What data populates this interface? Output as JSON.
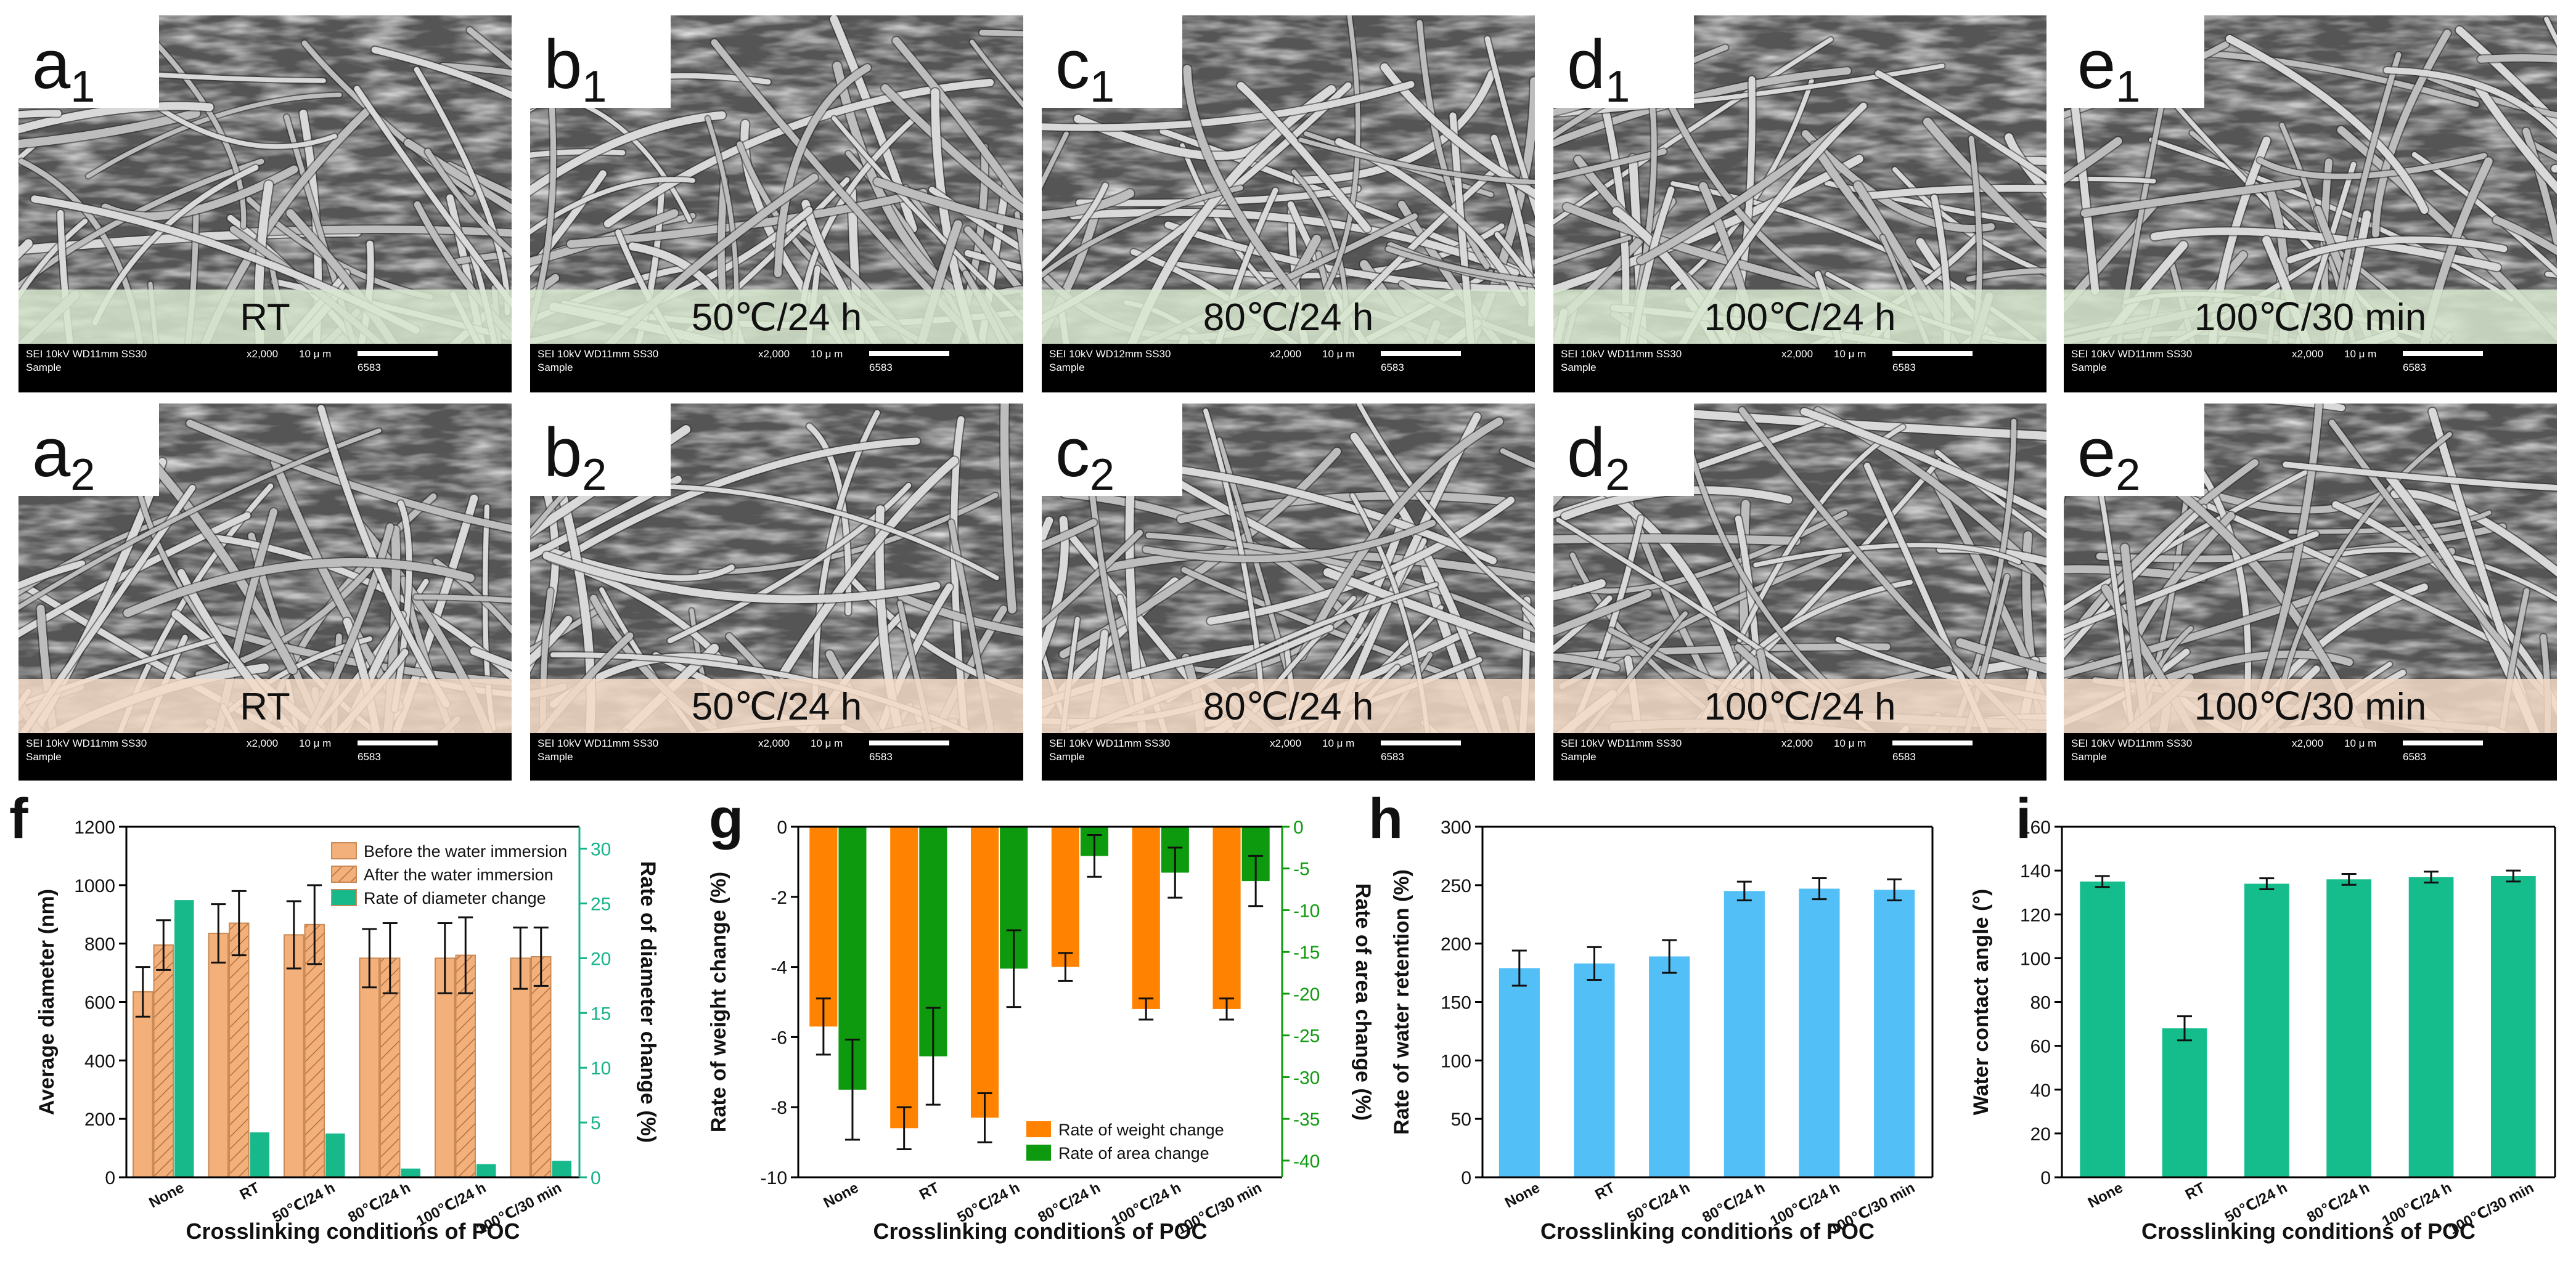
{
  "sem": {
    "rows": [
      {
        "row": 1,
        "band_color": "#d7e8cf",
        "panels": [
          {
            "letter": "a",
            "sub": "1",
            "condition": "RT",
            "info1": "SEI   10kV   WD11mm  SS30",
            "mag": "x2,000",
            "scale": "10 μ m",
            "sample": "Sample",
            "id": "6583"
          },
          {
            "letter": "b",
            "sub": "1",
            "condition": "50℃/24 h",
            "info1": "SEI   10kV   WD11mm  SS30",
            "mag": "x2,000",
            "scale": "10 μ m",
            "sample": "Sample",
            "id": "6583"
          },
          {
            "letter": "c",
            "sub": "1",
            "condition": "80℃/24 h",
            "info1": "SEI   10kV   WD12mm  SS30",
            "mag": "x2,000",
            "scale": "10 μ m",
            "sample": "Sample",
            "id": "6583"
          },
          {
            "letter": "d",
            "sub": "1",
            "condition": "100℃/24 h",
            "info1": "SEI   10kV   WD11mm  SS30",
            "mag": "x2,000",
            "scale": "10 μ m",
            "sample": "Sample",
            "id": "6583"
          },
          {
            "letter": "e",
            "sub": "1",
            "condition": "100℃/30 min",
            "info1": "SEI   10kV   WD11mm  SS30",
            "mag": "x2,000",
            "scale": "10 μ m",
            "sample": "Sample",
            "id": "6583"
          }
        ]
      },
      {
        "row": 2,
        "band_color": "#f3d9c6",
        "panels": [
          {
            "letter": "a",
            "sub": "2",
            "condition": "RT",
            "info1": "SEI   10kV   WD11mm  SS30",
            "mag": "x2,000",
            "scale": "10 μ m",
            "sample": "Sample",
            "id": "6583"
          },
          {
            "letter": "b",
            "sub": "2",
            "condition": "50℃/24 h",
            "info1": "SEI   10kV   WD11mm  SS30",
            "mag": "x2,000",
            "scale": "10 μ m",
            "sample": "Sample",
            "id": "6583"
          },
          {
            "letter": "c",
            "sub": "2",
            "condition": "80℃/24 h",
            "info1": "SEI   10kV   WD11mm  SS30",
            "mag": "x2,000",
            "scale": "10 μ m",
            "sample": "Sample",
            "id": "6583"
          },
          {
            "letter": "d",
            "sub": "2",
            "condition": "100℃/24 h",
            "info1": "SEI   10kV   WD11mm  SS30",
            "mag": "x2,000",
            "scale": "10 μ m",
            "sample": "Sample",
            "id": "6583"
          },
          {
            "letter": "e",
            "sub": "2",
            "condition": "100℃/30 min",
            "info1": "SEI   10kV   WD11mm  SS30",
            "mag": "x2,000",
            "scale": "10 μ m",
            "sample": "Sample",
            "id": "6583"
          }
        ]
      }
    ]
  },
  "colors": {
    "before": "#f3b07a",
    "after": "#f3b07a",
    "rate_diam": "#17b98a",
    "weight": "#ff8200",
    "area": "#0e9a0e",
    "retention": "#52bff6",
    "contact": "#16bd8c",
    "axis_green": "#0e9a0e",
    "axis_teal": "#16b38a"
  },
  "chart_data": [
    {
      "id": "f",
      "type": "bar",
      "panel_label": "f",
      "xlabel": "Crosslinking conditions of POC",
      "ylabel": "Average diameter (nm)",
      "y2label": "Rate of diameter change (%)",
      "categories": [
        "None",
        "RT",
        "50℃/24 h",
        "80℃/24 h",
        "100℃/24 h",
        "100℃/30 min"
      ],
      "ylim": [
        0,
        1200
      ],
      "yticks": [
        0,
        200,
        400,
        600,
        800,
        1000,
        1200
      ],
      "y2lim": [
        0,
        32
      ],
      "y2ticks": [
        0,
        5,
        10,
        15,
        20,
        25,
        30
      ],
      "series": [
        {
          "name": "Before the water immersion",
          "axis": "left",
          "values": [
            635,
            835,
            830,
            750,
            750,
            750
          ],
          "errors": [
            85,
            100,
            115,
            100,
            120,
            105
          ]
        },
        {
          "name": "After the water immersion",
          "axis": "left",
          "hatched": true,
          "values": [
            795,
            870,
            865,
            750,
            760,
            755
          ],
          "errors": [
            85,
            110,
            135,
            120,
            130,
            100
          ]
        },
        {
          "name": "Rate of diameter change",
          "axis": "right",
          "values": [
            25.3,
            4.1,
            4.0,
            0.8,
            1.2,
            1.5
          ]
        }
      ]
    },
    {
      "id": "g",
      "type": "bar",
      "panel_label": "g",
      "xlabel": "Crosslinking conditions of POC",
      "ylabel": "Rate of weight change (%)",
      "y2label": "Rate of area change (%)",
      "categories": [
        "None",
        "RT",
        "50℃/24 h",
        "80℃/24 h",
        "100℃/24 h",
        "100℃/30 min"
      ],
      "ylim": [
        -10,
        0
      ],
      "yticks": [
        0,
        -2,
        -4,
        -6,
        -8,
        -10
      ],
      "y2lim": [
        -42,
        0
      ],
      "y2ticks": [
        0,
        -5,
        -10,
        -15,
        -20,
        -25,
        -30,
        -35,
        -40
      ],
      "series": [
        {
          "name": "Rate of weight change",
          "axis": "left",
          "values": [
            -5.7,
            -8.6,
            -8.3,
            -4.0,
            -5.2,
            -5.2
          ],
          "errors": [
            0.8,
            0.6,
            0.7,
            0.4,
            0.3,
            0.3
          ]
        },
        {
          "name": "Rate of area change",
          "axis": "right",
          "values": [
            -31.5,
            -27.5,
            -17.0,
            -3.5,
            -5.5,
            -6.5
          ],
          "errors": [
            6,
            5.8,
            4.6,
            2.5,
            3,
            3
          ]
        }
      ]
    },
    {
      "id": "h",
      "type": "bar",
      "panel_label": "h",
      "xlabel": "Crosslinking conditions of POC",
      "ylabel": "Rate of water retention (%)",
      "categories": [
        "None",
        "RT",
        "50℃/24 h",
        "80℃/24 h",
        "100℃/24 h",
        "100℃/30 min"
      ],
      "ylim": [
        0,
        300
      ],
      "yticks": [
        0,
        50,
        100,
        150,
        200,
        250,
        300
      ],
      "series": [
        {
          "name": "Rate of water retention",
          "values": [
            179,
            183,
            189,
            245,
            247,
            246
          ],
          "errors": [
            15,
            14,
            14,
            8,
            9,
            9
          ]
        }
      ]
    },
    {
      "id": "i",
      "type": "bar",
      "panel_label": "i",
      "xlabel": "Crosslinking conditions of POC",
      "ylabel": "Water contact angle (°)",
      "categories": [
        "None",
        "RT",
        "50℃/24 h",
        "80℃/24 h",
        "100℃/24 h",
        "100℃/30 min"
      ],
      "ylim": [
        0,
        160
      ],
      "yticks": [
        0,
        20,
        40,
        60,
        80,
        100,
        120,
        140,
        160
      ],
      "series": [
        {
          "name": "Water contact angle",
          "values": [
            135,
            68,
            134,
            136,
            137,
            137.5
          ],
          "errors": [
            2.5,
            5.5,
            2.5,
            2.5,
            2.5,
            2.5
          ]
        }
      ]
    }
  ]
}
